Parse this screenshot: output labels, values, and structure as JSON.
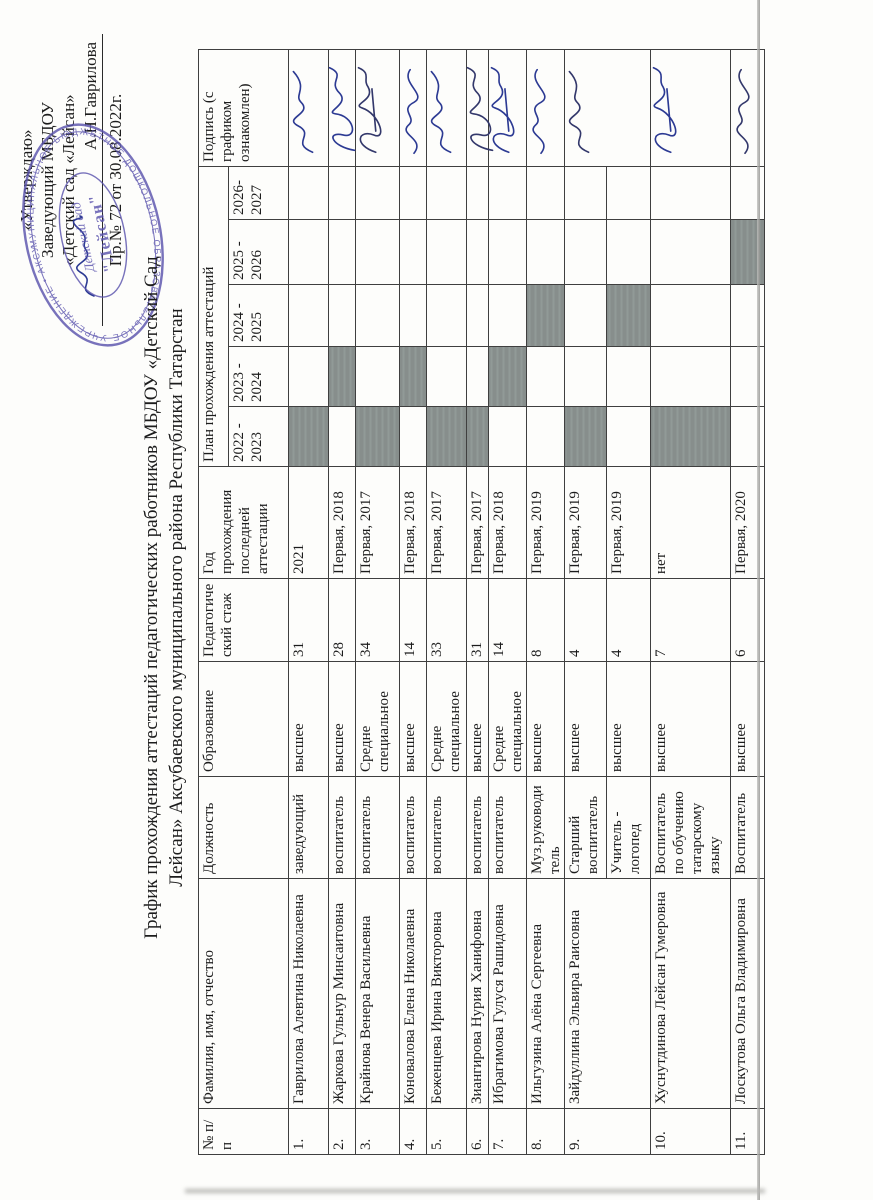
{
  "approval": {
    "line1": "«Утверждаю»",
    "line2": "Заведующий МБДОУ",
    "line3": "«Детский сад «Лейсан»",
    "signatory": "А.Н.Гаврилова",
    "order": "Пр.№ 72 от 30.08.2022г."
  },
  "stamp": {
    "ring_text": "МУНИЦИПАЛЬНОЕ БЮДЖЕТНОЕ ДОШКОЛЬНОЕ ОБРАЗОВАТЕЛЬНОЕ УЧРЕЖДЕНИЕ • АКСУБАЕВСКОГО РАЙОНА РТ •",
    "center_line1": "Детский сад",
    "center_line2": "\"Лейсан\""
  },
  "title": {
    "line1": "График прохождения аттестаций педагогических работников МБДОУ «Детский Сад",
    "line2": "Лейсан» Аксубаевского муниципального района Республики Татарстан"
  },
  "table": {
    "headers": {
      "num": "№ п/п",
      "name": "Фамилия, имя, отчество",
      "position": "Должность",
      "education": "Образование",
      "experience": "Педагогический стаж",
      "last_attestation": "Год прохождения последней аттестации",
      "plan": "План прохождения аттестаций",
      "signature": "Подпись (с графиком ознакомлен)"
    },
    "plan_years": [
      "2022 - 2023",
      "2023 - 2024",
      "2024 - 2025",
      "2025 - 2026",
      "2026-2027"
    ],
    "rows": [
      {
        "num": "1.",
        "name": "Гаврилова Алевтина Николаевна",
        "position": "заведующий",
        "education": "высшее",
        "experience": "31",
        "last_attestation": "2021",
        "plan_year": "2022 - 2023",
        "signed": true
      },
      {
        "num": "2.",
        "name": "Жаркова Гульнур Минсаитовна",
        "position": "воспитатель",
        "education": "высшее",
        "experience": "28",
        "last_attestation": "Первая, 2018",
        "plan_year": "2023 - 2024",
        "signed": true
      },
      {
        "num": "3.",
        "name": "Крайнова Венера Васильевна",
        "position": "воспитатель",
        "education": "Средне специальное",
        "experience": "34",
        "last_attestation": "Первая, 2017",
        "plan_year": "2022 - 2023",
        "signed": true
      },
      {
        "num": "4.",
        "name": "Коновалова Елена Николаевна",
        "position": "воспитатель",
        "education": "высшее",
        "experience": "14",
        "last_attestation": "Первая, 2018",
        "plan_year": "2023 - 2024",
        "signed": true
      },
      {
        "num": "5.",
        "name": "Беженцева Ирина Викторовна",
        "position": "воспитатель",
        "education": "Средне специальное",
        "experience": "33",
        "last_attestation": "Первая, 2017",
        "plan_year": "2022 - 2023",
        "signed": true
      },
      {
        "num": "6.",
        "name": "Зиангирова Нурия Ханифовна",
        "position": "воспитатель",
        "education": "высшее",
        "experience": "31",
        "last_attestation": "Первая, 2017",
        "plan_year": "2022 - 2023",
        "signed": true
      },
      {
        "num": "7.",
        "name": "Ибрагимова Гулуся Рашидовна",
        "position": "воспитатель",
        "education": "Средне специальное",
        "experience": "14",
        "last_attestation": "Первая, 2018",
        "plan_year": "2023 - 2024",
        "signed": true
      },
      {
        "num": "8.",
        "name": "Ильгузина Алёна Сергеевна",
        "position": "Муз.руководитель",
        "education": "высшее",
        "experience": "8",
        "last_attestation": "Первая, 2019",
        "plan_year": "2024 - 2025",
        "signed": true
      },
      {
        "num": "9.",
        "name": "Зайдуллина Эльвира Раисовна",
        "position": "Старший воспитатель",
        "education": "высшее",
        "experience": "4",
        "last_attestation": "Первая, 2019",
        "plan_year": "2022 - 2023",
        "signed": true,
        "group": "start"
      },
      {
        "num": "",
        "name": "",
        "position": "Учитель - логопед",
        "education": "высшее",
        "experience": "4",
        "last_attestation": "Первая, 2019",
        "plan_year": "2024 - 2025",
        "signed": false,
        "group": "cont"
      },
      {
        "num": "10.",
        "name": "Хуснутдинова Лейсан Гумеровна",
        "position": "Воспитатель по обучению татарскому языку",
        "education": "высшее",
        "experience": "7",
        "last_attestation": "нет",
        "plan_year": "2022 - 2023",
        "signed": true
      },
      {
        "num": "11.",
        "name": "Лоскутова Ольга Владимировна",
        "position": "Воспитатель",
        "education": "высшее",
        "experience": "6",
        "last_attestation": "Первая, 2020",
        "plan_year": "2025 - 2026",
        "signed": true
      }
    ]
  },
  "colors": {
    "paper": "#fdfdfb",
    "grid_line": "#3f3f3f",
    "plan_filled": "#8a908e",
    "signature_ink": "#2c3a93",
    "stamp_ink": "#5b54ae"
  }
}
